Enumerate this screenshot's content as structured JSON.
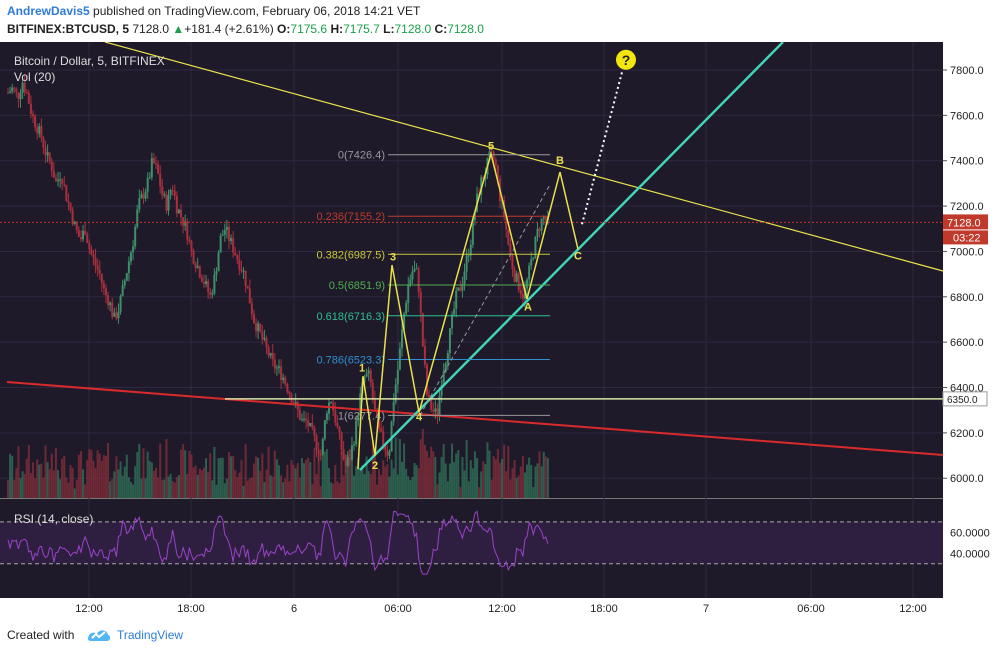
{
  "header": {
    "author": "AndrewDavis5",
    "published": "published on TradingView.com, February 06, 2018 14:21 VET",
    "symbol": "BITFINEX:BTCUSD, 5",
    "last": "7128.0",
    "change": "+181.4 (+2.61%)",
    "o_label": "O:",
    "o_value": "7175.6",
    "h_label": "H:",
    "h_value": "7175.7",
    "l_label": "L:",
    "l_value": "7128.0",
    "c_label": "C:",
    "c_value": "7128.0"
  },
  "footer": {
    "created_with": "Created with",
    "brand": "TradingView"
  },
  "colors": {
    "up": "#3e8f6a",
    "down": "#a8303c",
    "fib": "#d9d84a",
    "trend_teal": "#41d6b8",
    "trend_red": "#d92b2b",
    "rsi": "#9b42c8",
    "bg": "#1f1a2a"
  },
  "chart_data": {
    "type": "candlestick",
    "title": "Bitcoin / Dollar, 5, BITFINEX",
    "volume_label": "Vol (20)",
    "rsi_label": "RSI (14, close)",
    "y_ticks": [
      "7800.0",
      "7600.0",
      "7400.0",
      "7200.0",
      "7000.0",
      "6800.0",
      "6600.0",
      "6400.0",
      "6200.0",
      "6000.0"
    ],
    "ylim": [
      5900,
      7900
    ],
    "x_ticks": [
      "12:00",
      "18:00",
      "6",
      "06:00",
      "12:00",
      "18:00",
      "7",
      "06:00",
      "12:00"
    ],
    "rsi_ticks": [
      "60.0000",
      "40.0000"
    ],
    "rsi_levels": [
      70,
      30
    ],
    "last_price": "7128.0",
    "countdown": "03:22",
    "level_label": "6350.0",
    "fib_levels": [
      {
        "ratio": "0",
        "price": 7426.4,
        "label": "0(7426.4)"
      },
      {
        "ratio": "0.236",
        "price": 7155.2,
        "label": "0.236(7155.2)"
      },
      {
        "ratio": "0.382",
        "price": 6987.5,
        "label": "0.382(6987.5)"
      },
      {
        "ratio": "0.5",
        "price": 6851.9,
        "label": "0.5(6851.9)"
      },
      {
        "ratio": "0.618",
        "price": 6716.3,
        "label": "0.618(6716.3)"
      },
      {
        "ratio": "0.786",
        "price": 6523.3,
        "label": "0.786(6523.3)"
      },
      {
        "ratio": "1",
        "price": 6277.4,
        "label": "1(6277.4)"
      }
    ],
    "wave_labels": [
      "1",
      "2",
      "3",
      "4",
      "5",
      "A",
      "B",
      "C"
    ],
    "question_mark": "?",
    "price_path": [
      [
        7700,
        7720,
        7680,
        7750,
        7690,
        7600,
        7550,
        7500,
        7420,
        7380,
        7300,
        7350,
        7250,
        7180,
        7100,
        7050,
        7100,
        7000,
        6950,
        6900,
        6820,
        6780,
        6700,
        6750,
        6850,
        6950,
        7050,
        7200,
        7250,
        7300,
        7400,
        7350,
        7250,
        7200,
        7300,
        7200,
        7150,
        7100,
        7000,
        6950,
        6900,
        6850,
        6800,
        6900,
        7050,
        7100,
        7050,
        7000,
        6950,
        6900,
        6800,
        6700,
        6650,
        6600,
        6550,
        6500,
        6480,
        6450,
        6400,
        6350,
        6300,
        6250,
        6250,
        6200,
        6150,
        6100,
        6300,
        6350,
        6250,
        6150,
        6050,
        6100,
        6200,
        6350,
        6450,
        6450,
        6300,
        6200,
        6150,
        6100,
        6350,
        6500,
        6700,
        6850,
        6920,
        6900,
        6600,
        6350,
        6300,
        6280,
        6450,
        6550,
        6680,
        6800,
        6850,
        6950,
        7050,
        7200,
        7300,
        7350,
        7420,
        7400,
        7250,
        7150,
        7000,
        6900,
        6850,
        6800,
        6900,
        7000,
        7100,
        7150,
        7128
      ]
    ]
  }
}
